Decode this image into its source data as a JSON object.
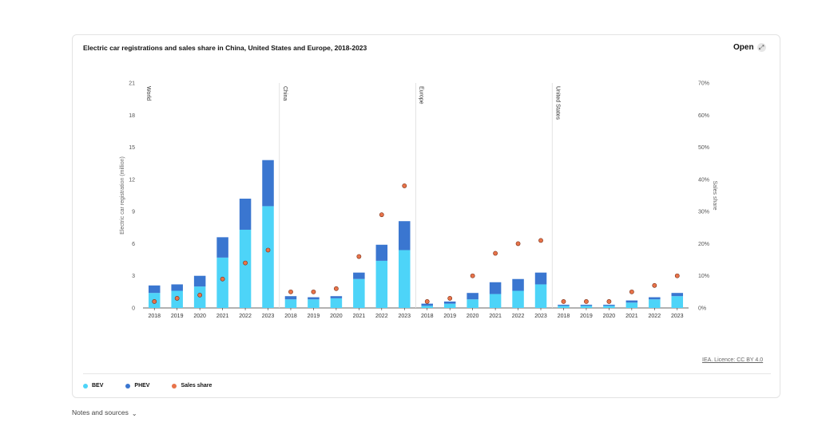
{
  "header": {
    "title": "Electric car registrations and sales share in China, United States and Europe, 2018-2023",
    "open_label": "Open"
  },
  "footer": {
    "licence": "IEA. Licence: CC BY 4.0",
    "notes_label": "Notes and sources"
  },
  "legend": [
    {
      "label": "BEV",
      "color": "#4dd4f8"
    },
    {
      "label": "PHEV",
      "color": "#3a76d0"
    },
    {
      "label": "Sales share",
      "color": "#e8734a"
    }
  ],
  "chart_data": {
    "type": "bar",
    "stacked": true,
    "ylabel": "Electric car registration (million)",
    "y2label": "Sales share",
    "ylim": [
      0,
      21
    ],
    "y2lim": [
      0,
      70
    ],
    "yticks": [
      0,
      3,
      6,
      9,
      12,
      15,
      18,
      21
    ],
    "y2ticks": [
      "0%",
      "10%",
      "20%",
      "30%",
      "40%",
      "50%",
      "60%",
      "70%"
    ],
    "grid": false,
    "legend_position": "bottom-left",
    "colors": {
      "bev": "#4dd4f8",
      "phev": "#3a76d0",
      "share": "#e8734a",
      "share_stroke": "#7a2e14"
    },
    "groups": [
      {
        "name": "World",
        "years": [
          "2018",
          "2019",
          "2020",
          "2021",
          "2022",
          "2023"
        ],
        "bev": [
          1.4,
          1.6,
          2.0,
          4.7,
          7.3,
          9.5
        ],
        "phev": [
          0.7,
          0.6,
          1.0,
          1.9,
          2.9,
          4.3
        ],
        "share": [
          2,
          3,
          4,
          9,
          14,
          18
        ]
      },
      {
        "name": "China",
        "years": [
          "2018",
          "2019",
          "2020",
          "2021",
          "2022",
          "2023"
        ],
        "bev": [
          0.8,
          0.8,
          0.9,
          2.7,
          4.4,
          5.4
        ],
        "phev": [
          0.3,
          0.2,
          0.2,
          0.6,
          1.5,
          2.7
        ],
        "share": [
          5,
          5,
          6,
          16,
          29,
          38
        ]
      },
      {
        "name": "Europe",
        "years": [
          "2018",
          "2019",
          "2020",
          "2021",
          "2022",
          "2023"
        ],
        "bev": [
          0.2,
          0.4,
          0.8,
          1.3,
          1.6,
          2.2
        ],
        "phev": [
          0.2,
          0.2,
          0.6,
          1.1,
          1.1,
          1.1
        ],
        "share": [
          2,
          3,
          10,
          17,
          20,
          21
        ]
      },
      {
        "name": "United States",
        "years": [
          "2018",
          "2019",
          "2020",
          "2021",
          "2022",
          "2023"
        ],
        "bev": [
          0.2,
          0.2,
          0.2,
          0.5,
          0.8,
          1.1
        ],
        "phev": [
          0.1,
          0.1,
          0.1,
          0.2,
          0.2,
          0.3
        ],
        "share": [
          2,
          2,
          2,
          5,
          7,
          10
        ]
      }
    ]
  }
}
